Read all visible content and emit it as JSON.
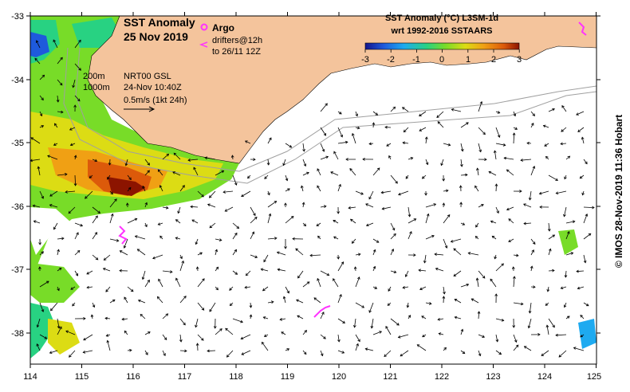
{
  "title": {
    "line1": "SST Anomaly",
    "line2": "25 Nov 2019"
  },
  "argo": {
    "label": "Argo",
    "color": "#ff33ff"
  },
  "drifters": {
    "line1": "drifters@12h",
    "line2": "to 26/11 12Z"
  },
  "isobaths": {
    "shallow": "200m",
    "deep": "1000m"
  },
  "currents": {
    "source": "NRT00 GSL",
    "time": "24-Nov 10:40Z",
    "scale": "0.5m/s (1kt 24h)"
  },
  "colorbar": {
    "title": "SST Anomaly (°C) L3SM-1d",
    "subtitle": "wrt 1992-2016 SSTAARS",
    "ticks": [
      "-3",
      "-2",
      "-1",
      "0",
      "1",
      "2",
      "3"
    ],
    "colors": [
      "#14148c",
      "#1e5adc",
      "#1eaaf0",
      "#28d282",
      "#78dc28",
      "#dcdc14",
      "#f0a014",
      "#dc5a0a",
      "#8c1400"
    ]
  },
  "land_color": "#f4c49c",
  "credit": "© IMOS 28-Nov-2019 11:36 Hobart",
  "axes": {
    "lon_ticks": [
      "114",
      "115",
      "116",
      "117",
      "118",
      "119",
      "120",
      "121",
      "122",
      "123",
      "124",
      "125"
    ],
    "lat_ticks": [
      "-33",
      "-34",
      "-35",
      "-36",
      "-37",
      "-38"
    ]
  }
}
